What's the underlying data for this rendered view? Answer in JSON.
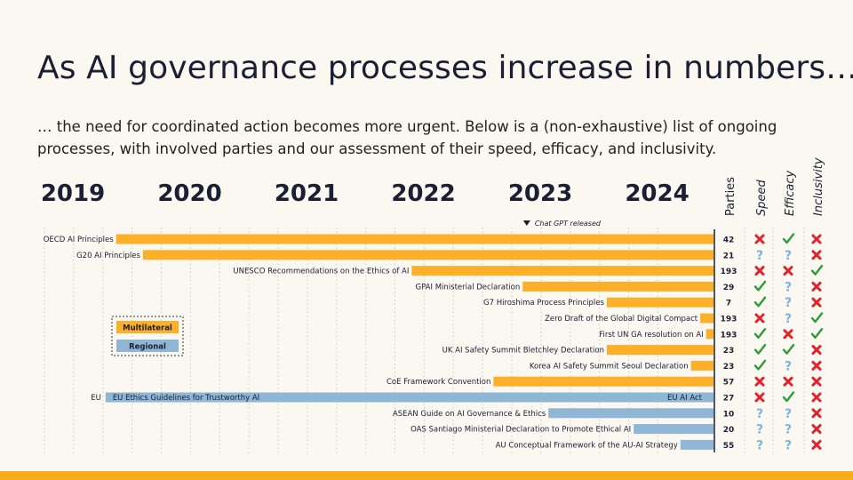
{
  "title": "As AI governance processes increase in numbers…",
  "subtitle": "… the need for coordinated action becomes more urgent. Below is a (non-exhaustive) list of ongoing processes, with involved parties and our assessment of their speed, efficacy, and inclusivity.",
  "colors": {
    "multilateral": "#fcb02a",
    "regional": "#8fb6d4",
    "check": "#2e9a3c",
    "cross": "#e0242e",
    "question": "#7fb3dc",
    "footer": "#f9ac19"
  },
  "chart_data": {
    "type": "timeline-bar",
    "x_range": [
      2019.0,
      2024.0
    ],
    "years": [
      "2019",
      "2020",
      "2021",
      "2022",
      "2023",
      "2024"
    ],
    "event": {
      "label": "Chat GPT released",
      "year": 2022.9
    },
    "columns": [
      "Parties",
      "Speed",
      "Efficacy",
      "Inclusivity"
    ],
    "legend": [
      {
        "key": "multilateral",
        "label": "Multilateral"
      },
      {
        "key": "regional",
        "label": "Regional"
      }
    ],
    "rows": [
      {
        "label": "OECD AI Principles",
        "start": 2019.37,
        "type": "multilateral",
        "parties": "42",
        "speed": "cross",
        "efficacy": "check",
        "inclusivity": "cross"
      },
      {
        "label": "G20 AI Principles",
        "start": 2019.6,
        "type": "multilateral",
        "parties": "21",
        "speed": "question",
        "efficacy": "question",
        "inclusivity": "cross"
      },
      {
        "label": "UNESCO Recommendations on the Ethics of AI",
        "start": 2021.9,
        "type": "multilateral",
        "parties": "193",
        "speed": "cross",
        "efficacy": "cross",
        "inclusivity": "check"
      },
      {
        "label": "GPAI Ministerial Declaration",
        "start": 2022.85,
        "type": "multilateral",
        "parties": "29",
        "speed": "check",
        "efficacy": "question",
        "inclusivity": "cross"
      },
      {
        "label": "G7 Hiroshima Process Principles",
        "start": 2023.57,
        "type": "multilateral",
        "parties": "7",
        "speed": "check",
        "efficacy": "question",
        "inclusivity": "cross"
      },
      {
        "label": "Zero Draft of the Global Digital Compact",
        "start": 2024.37,
        "type": "multilateral",
        "parties": "193",
        "speed": "cross",
        "efficacy": "question",
        "inclusivity": "check"
      },
      {
        "label": "First UN GA resolution on AI",
        "start": 2024.42,
        "type": "multilateral",
        "parties": "193",
        "speed": "check",
        "efficacy": "cross",
        "inclusivity": "check"
      },
      {
        "label": "UK AI Safety Summit Bletchley Declaration",
        "start": 2023.57,
        "type": "multilateral",
        "parties": "23",
        "speed": "check",
        "efficacy": "check",
        "inclusivity": "cross"
      },
      {
        "label": "Korea AI Safety Summit Seoul Declaration",
        "start": 2024.29,
        "type": "multilateral",
        "parties": "23",
        "speed": "check",
        "efficacy": "question",
        "inclusivity": "cross"
      },
      {
        "label": "CoE Framework Convention",
        "start": 2022.6,
        "type": "multilateral",
        "parties": "57",
        "speed": "cross",
        "efficacy": "cross",
        "inclusivity": "cross"
      },
      {
        "label": "EU Ethics Guidelines for Trustworthy AI",
        "prefix": "EU",
        "end_label": "EU AI Act",
        "start": 2019.28,
        "type": "regional",
        "parties": "27",
        "speed": "cross",
        "efficacy": "check",
        "inclusivity": "cross"
      },
      {
        "label": "ASEAN Guide on AI Governance & Ethics",
        "start": 2023.07,
        "type": "regional",
        "parties": "10",
        "speed": "question",
        "efficacy": "question",
        "inclusivity": "cross"
      },
      {
        "label": "OAS Santiago Ministerial Declaration to Promote Ethical AI",
        "start": 2023.8,
        "type": "regional",
        "parties": "20",
        "speed": "question",
        "efficacy": "question",
        "inclusivity": "cross"
      },
      {
        "label": "AU Conceptual Framework of the AU-AI Strategy",
        "start": 2024.2,
        "type": "regional",
        "parties": "55",
        "speed": "question",
        "efficacy": "question",
        "inclusivity": "cross"
      }
    ]
  }
}
